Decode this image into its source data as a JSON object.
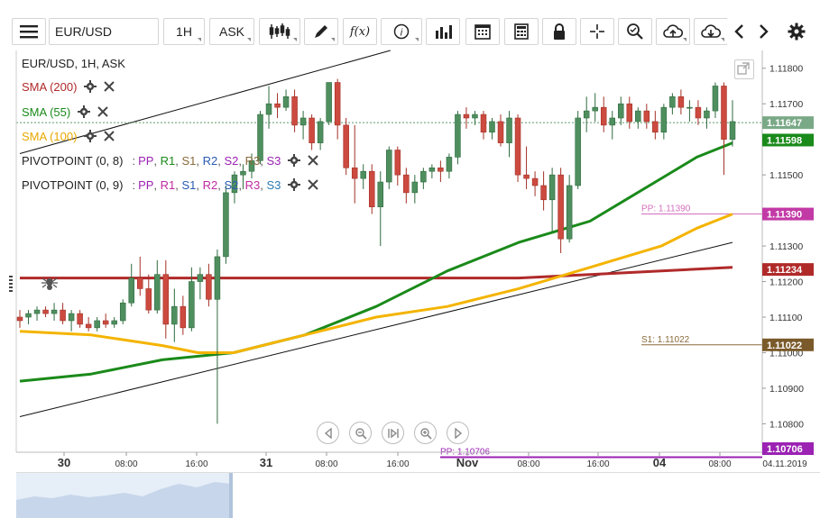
{
  "toolbar": {
    "symbol": "EUR/USD",
    "timeframe": "1H",
    "price_side": "ASK",
    "icons": [
      "menu-icon",
      "candlestick-type-icon",
      "pencil-icon",
      "function-icon",
      "info-icon",
      "volume-bars-icon",
      "calendar-icon",
      "calculator-icon",
      "lock-icon",
      "crosshair-icon",
      "zoom-icon",
      "cloud-upload-icon",
      "cloud-download-icon",
      "chevron-left-icon",
      "chevron-right-icon",
      "gear-icon"
    ],
    "function_label": "f(x)"
  },
  "legend": {
    "header": "EUR/USD, 1H, ASK",
    "sma200": "SMA (200)",
    "sma55": "SMA (55)",
    "sma100": "SMA (100)",
    "pivot1_name": "PIVOTPOINT (0, 8)",
    "pivot2_name": "PIVOTPOINT (0, 9)",
    "pivot_sep": ":",
    "pivot_levels": [
      "PP",
      "R1",
      "S1",
      "R2",
      "S2",
      "R3",
      "S3"
    ],
    "colors": {
      "sma200": "#b02a2a",
      "sma55": "#1a8a1a",
      "sma100": "#f4b400"
    }
  },
  "price_labels": {
    "current": "1.11647",
    "sma55": "1.11598",
    "pp": "1.11390",
    "sma200": "1.11234",
    "s1": "1.11022",
    "pp2": "1.10706"
  },
  "level_lines": {
    "pp_label": "PP: 1.11390",
    "s1_label": "S1: 1.11022",
    "pp2_label": "PP: 1.10706"
  },
  "x_axis": {
    "labels": [
      "30",
      "08:00",
      "16:00",
      "31",
      "08:00",
      "16:00",
      "Nov",
      "08:00",
      "16:00",
      "04",
      "08:00"
    ],
    "date_right": "04.11.2019"
  },
  "chart_data": {
    "type": "candlestick",
    "title": "EUR/USD, 1H, ASK",
    "ylim": [
      1.1072,
      1.1185
    ],
    "y_ticks": [
      1.108,
      1.109,
      1.11,
      1.111,
      1.112,
      1.113,
      1.114,
      1.115,
      1.116,
      1.117,
      1.118
    ],
    "y_tick_labels": [
      "1.10800",
      "1.10900",
      "1.11000",
      "1.11100",
      "1.11200",
      "1.11300",
      "1.11400",
      "1.11500",
      "1.11600",
      "1.11700",
      "1.11800"
    ],
    "candles": [
      {
        "o": 1.111,
        "h": 1.1112,
        "l": 1.1107,
        "c": 1.1109
      },
      {
        "o": 1.111,
        "h": 1.1112,
        "l": 1.1108,
        "c": 1.1111
      },
      {
        "o": 1.1111,
        "h": 1.1113,
        "l": 1.1109,
        "c": 1.1112
      },
      {
        "o": 1.1112,
        "h": 1.1113,
        "l": 1.111,
        "c": 1.1111
      },
      {
        "o": 1.1111,
        "h": 1.1114,
        "l": 1.1109,
        "c": 1.1112
      },
      {
        "o": 1.1112,
        "h": 1.1114,
        "l": 1.1108,
        "c": 1.1109
      },
      {
        "o": 1.1109,
        "h": 1.1112,
        "l": 1.1106,
        "c": 1.1111
      },
      {
        "o": 1.1111,
        "h": 1.1112,
        "l": 1.1107,
        "c": 1.1108
      },
      {
        "o": 1.1108,
        "h": 1.111,
        "l": 1.1106,
        "c": 1.1107
      },
      {
        "o": 1.1107,
        "h": 1.111,
        "l": 1.1106,
        "c": 1.1109
      },
      {
        "o": 1.1109,
        "h": 1.1111,
        "l": 1.1107,
        "c": 1.1108
      },
      {
        "o": 1.1108,
        "h": 1.111,
        "l": 1.1107,
        "c": 1.1109
      },
      {
        "o": 1.1109,
        "h": 1.1115,
        "l": 1.1108,
        "c": 1.1114
      },
      {
        "o": 1.1114,
        "h": 1.1125,
        "l": 1.1113,
        "c": 1.1121
      },
      {
        "o": 1.1121,
        "h": 1.1127,
        "l": 1.1116,
        "c": 1.1118
      },
      {
        "o": 1.1118,
        "h": 1.1122,
        "l": 1.1111,
        "c": 1.1112
      },
      {
        "o": 1.1112,
        "h": 1.1126,
        "l": 1.1111,
        "c": 1.1122
      },
      {
        "o": 1.1122,
        "h": 1.1126,
        "l": 1.1104,
        "c": 1.1108
      },
      {
        "o": 1.1108,
        "h": 1.1118,
        "l": 1.1103,
        "c": 1.1113
      },
      {
        "o": 1.1113,
        "h": 1.1116,
        "l": 1.1105,
        "c": 1.1107
      },
      {
        "o": 1.1107,
        "h": 1.1124,
        "l": 1.1106,
        "c": 1.112
      },
      {
        "o": 1.112,
        "h": 1.1124,
        "l": 1.1115,
        "c": 1.1122
      },
      {
        "o": 1.1122,
        "h": 1.1125,
        "l": 1.1113,
        "c": 1.1115
      },
      {
        "o": 1.1115,
        "h": 1.1129,
        "l": 1.108,
        "c": 1.1127
      },
      {
        "o": 1.1127,
        "h": 1.1147,
        "l": 1.1125,
        "c": 1.1145
      },
      {
        "o": 1.1145,
        "h": 1.1151,
        "l": 1.1142,
        "c": 1.115
      },
      {
        "o": 1.115,
        "h": 1.1153,
        "l": 1.1146,
        "c": 1.1151
      },
      {
        "o": 1.1151,
        "h": 1.1156,
        "l": 1.1149,
        "c": 1.1154
      },
      {
        "o": 1.1154,
        "h": 1.1168,
        "l": 1.1153,
        "c": 1.1167
      },
      {
        "o": 1.1167,
        "h": 1.1175,
        "l": 1.1163,
        "c": 1.117
      },
      {
        "o": 1.117,
        "h": 1.1173,
        "l": 1.1166,
        "c": 1.1169
      },
      {
        "o": 1.1169,
        "h": 1.1174,
        "l": 1.1168,
        "c": 1.1172
      },
      {
        "o": 1.1172,
        "h": 1.1174,
        "l": 1.1162,
        "c": 1.1164
      },
      {
        "o": 1.1164,
        "h": 1.1168,
        "l": 1.116,
        "c": 1.1166
      },
      {
        "o": 1.1166,
        "h": 1.1167,
        "l": 1.1157,
        "c": 1.1159
      },
      {
        "o": 1.1159,
        "h": 1.1166,
        "l": 1.1157,
        "c": 1.1165
      },
      {
        "o": 1.1165,
        "h": 1.1176,
        "l": 1.1164,
        "c": 1.1176
      },
      {
        "o": 1.1176,
        "h": 1.1177,
        "l": 1.116,
        "c": 1.1164
      },
      {
        "o": 1.1164,
        "h": 1.1166,
        "l": 1.115,
        "c": 1.1152
      },
      {
        "o": 1.1152,
        "h": 1.1164,
        "l": 1.1142,
        "c": 1.1149
      },
      {
        "o": 1.1149,
        "h": 1.1153,
        "l": 1.1146,
        "c": 1.1151
      },
      {
        "o": 1.1151,
        "h": 1.1153,
        "l": 1.1139,
        "c": 1.1141
      },
      {
        "o": 1.1141,
        "h": 1.1151,
        "l": 1.113,
        "c": 1.1148
      },
      {
        "o": 1.1148,
        "h": 1.1158,
        "l": 1.1146,
        "c": 1.1157
      },
      {
        "o": 1.1157,
        "h": 1.1158,
        "l": 1.1147,
        "c": 1.115
      },
      {
        "o": 1.115,
        "h": 1.1152,
        "l": 1.1142,
        "c": 1.1145
      },
      {
        "o": 1.1145,
        "h": 1.115,
        "l": 1.1142,
        "c": 1.1148
      },
      {
        "o": 1.1148,
        "h": 1.1152,
        "l": 1.1146,
        "c": 1.1151
      },
      {
        "o": 1.1151,
        "h": 1.1153,
        "l": 1.1149,
        "c": 1.1152
      },
      {
        "o": 1.1152,
        "h": 1.1154,
        "l": 1.1148,
        "c": 1.1151
      },
      {
        "o": 1.1151,
        "h": 1.1156,
        "l": 1.1149,
        "c": 1.1155
      },
      {
        "o": 1.1155,
        "h": 1.1168,
        "l": 1.1153,
        "c": 1.1167
      },
      {
        "o": 1.1167,
        "h": 1.1169,
        "l": 1.1163,
        "c": 1.1166
      },
      {
        "o": 1.1166,
        "h": 1.1168,
        "l": 1.1164,
        "c": 1.1167
      },
      {
        "o": 1.1167,
        "h": 1.1168,
        "l": 1.116,
        "c": 1.1162
      },
      {
        "o": 1.1162,
        "h": 1.1166,
        "l": 1.116,
        "c": 1.1165
      },
      {
        "o": 1.1165,
        "h": 1.1167,
        "l": 1.1158,
        "c": 1.1159
      },
      {
        "o": 1.1159,
        "h": 1.1168,
        "l": 1.1155,
        "c": 1.1166
      },
      {
        "o": 1.1166,
        "h": 1.1167,
        "l": 1.1148,
        "c": 1.115
      },
      {
        "o": 1.115,
        "h": 1.1158,
        "l": 1.1146,
        "c": 1.1149
      },
      {
        "o": 1.1149,
        "h": 1.1151,
        "l": 1.1144,
        "c": 1.1147
      },
      {
        "o": 1.1147,
        "h": 1.1151,
        "l": 1.114,
        "c": 1.1143
      },
      {
        "o": 1.1143,
        "h": 1.1152,
        "l": 1.1134,
        "c": 1.115
      },
      {
        "o": 1.115,
        "h": 1.1152,
        "l": 1.1128,
        "c": 1.1132
      },
      {
        "o": 1.1132,
        "h": 1.115,
        "l": 1.1131,
        "c": 1.1147
      },
      {
        "o": 1.1147,
        "h": 1.1168,
        "l": 1.1146,
        "c": 1.1166
      },
      {
        "o": 1.1166,
        "h": 1.1172,
        "l": 1.1162,
        "c": 1.1168
      },
      {
        "o": 1.1168,
        "h": 1.1173,
        "l": 1.1165,
        "c": 1.1169
      },
      {
        "o": 1.1169,
        "h": 1.1172,
        "l": 1.1162,
        "c": 1.1164
      },
      {
        "o": 1.1164,
        "h": 1.1168,
        "l": 1.116,
        "c": 1.1166
      },
      {
        "o": 1.1166,
        "h": 1.1172,
        "l": 1.1164,
        "c": 1.117
      },
      {
        "o": 1.117,
        "h": 1.1172,
        "l": 1.1163,
        "c": 1.1165
      },
      {
        "o": 1.1165,
        "h": 1.1169,
        "l": 1.1163,
        "c": 1.1168
      },
      {
        "o": 1.1168,
        "h": 1.117,
        "l": 1.1163,
        "c": 1.1165
      },
      {
        "o": 1.1165,
        "h": 1.1168,
        "l": 1.116,
        "c": 1.1162
      },
      {
        "o": 1.1162,
        "h": 1.117,
        "l": 1.116,
        "c": 1.1169
      },
      {
        "o": 1.1169,
        "h": 1.1173,
        "l": 1.1167,
        "c": 1.1172
      },
      {
        "o": 1.1172,
        "h": 1.1174,
        "l": 1.1167,
        "c": 1.1169
      },
      {
        "o": 1.1169,
        "h": 1.1171,
        "l": 1.1165,
        "c": 1.1169
      },
      {
        "o": 1.1169,
        "h": 1.1171,
        "l": 1.1164,
        "c": 1.1166
      },
      {
        "o": 1.1166,
        "h": 1.1169,
        "l": 1.1163,
        "c": 1.1168
      },
      {
        "o": 1.1168,
        "h": 1.1176,
        "l": 1.1166,
        "c": 1.1175
      },
      {
        "o": 1.1175,
        "h": 1.1176,
        "l": 1.115,
        "c": 1.116
      },
      {
        "o": 1.116,
        "h": 1.1171,
        "l": 1.1158,
        "c": 1.1165
      }
    ],
    "series": [
      {
        "name": "SMA (200)",
        "color": "#b02a2a",
        "points": [
          [
            0,
            1.1121
          ],
          [
            20,
            1.1121
          ],
          [
            40,
            1.1121
          ],
          [
            60,
            1.1121
          ],
          [
            70,
            1.1121
          ],
          [
            80,
            1.1122
          ],
          [
            90,
            1.1123
          ],
          [
            100,
            1.1124
          ]
        ]
      },
      {
        "name": "SMA (55)",
        "color": "#1a8a1a",
        "points": [
          [
            0,
            1.1092
          ],
          [
            10,
            1.1094
          ],
          [
            20,
            1.1098
          ],
          [
            30,
            1.11
          ],
          [
            40,
            1.1105
          ],
          [
            50,
            1.1113
          ],
          [
            60,
            1.1123
          ],
          [
            70,
            1.1131
          ],
          [
            80,
            1.1137
          ],
          [
            85,
            1.1143
          ],
          [
            90,
            1.1149
          ],
          [
            95,
            1.1155
          ],
          [
            100,
            1.1159
          ]
        ]
      },
      {
        "name": "SMA (100)",
        "color": "#f4b400",
        "points": [
          [
            0,
            1.1106
          ],
          [
            10,
            1.1105
          ],
          [
            20,
            1.1102
          ],
          [
            25,
            1.11
          ],
          [
            30,
            1.11
          ],
          [
            40,
            1.1105
          ],
          [
            50,
            1.111
          ],
          [
            60,
            1.1113
          ],
          [
            70,
            1.1118
          ],
          [
            80,
            1.1124
          ],
          [
            85,
            1.1127
          ],
          [
            90,
            1.113
          ],
          [
            95,
            1.1135
          ],
          [
            100,
            1.1139
          ]
        ]
      }
    ],
    "trendlines": [
      {
        "name": "upper-channel",
        "from": [
          0,
          1.1156
        ],
        "to": [
          52,
          1.1185
        ]
      },
      {
        "name": "lower-channel",
        "from": [
          0,
          1.1082
        ],
        "to": [
          100,
          1.1131
        ]
      }
    ],
    "levels": [
      {
        "name": "PP",
        "value": 1.1139,
        "color": "#d36fbf"
      },
      {
        "name": "S1",
        "value": 1.11022,
        "color": "#8a6a3a"
      },
      {
        "name": "PP",
        "value": 1.10706,
        "color": "#9b22b3"
      }
    ],
    "current_price": 1.11647
  }
}
